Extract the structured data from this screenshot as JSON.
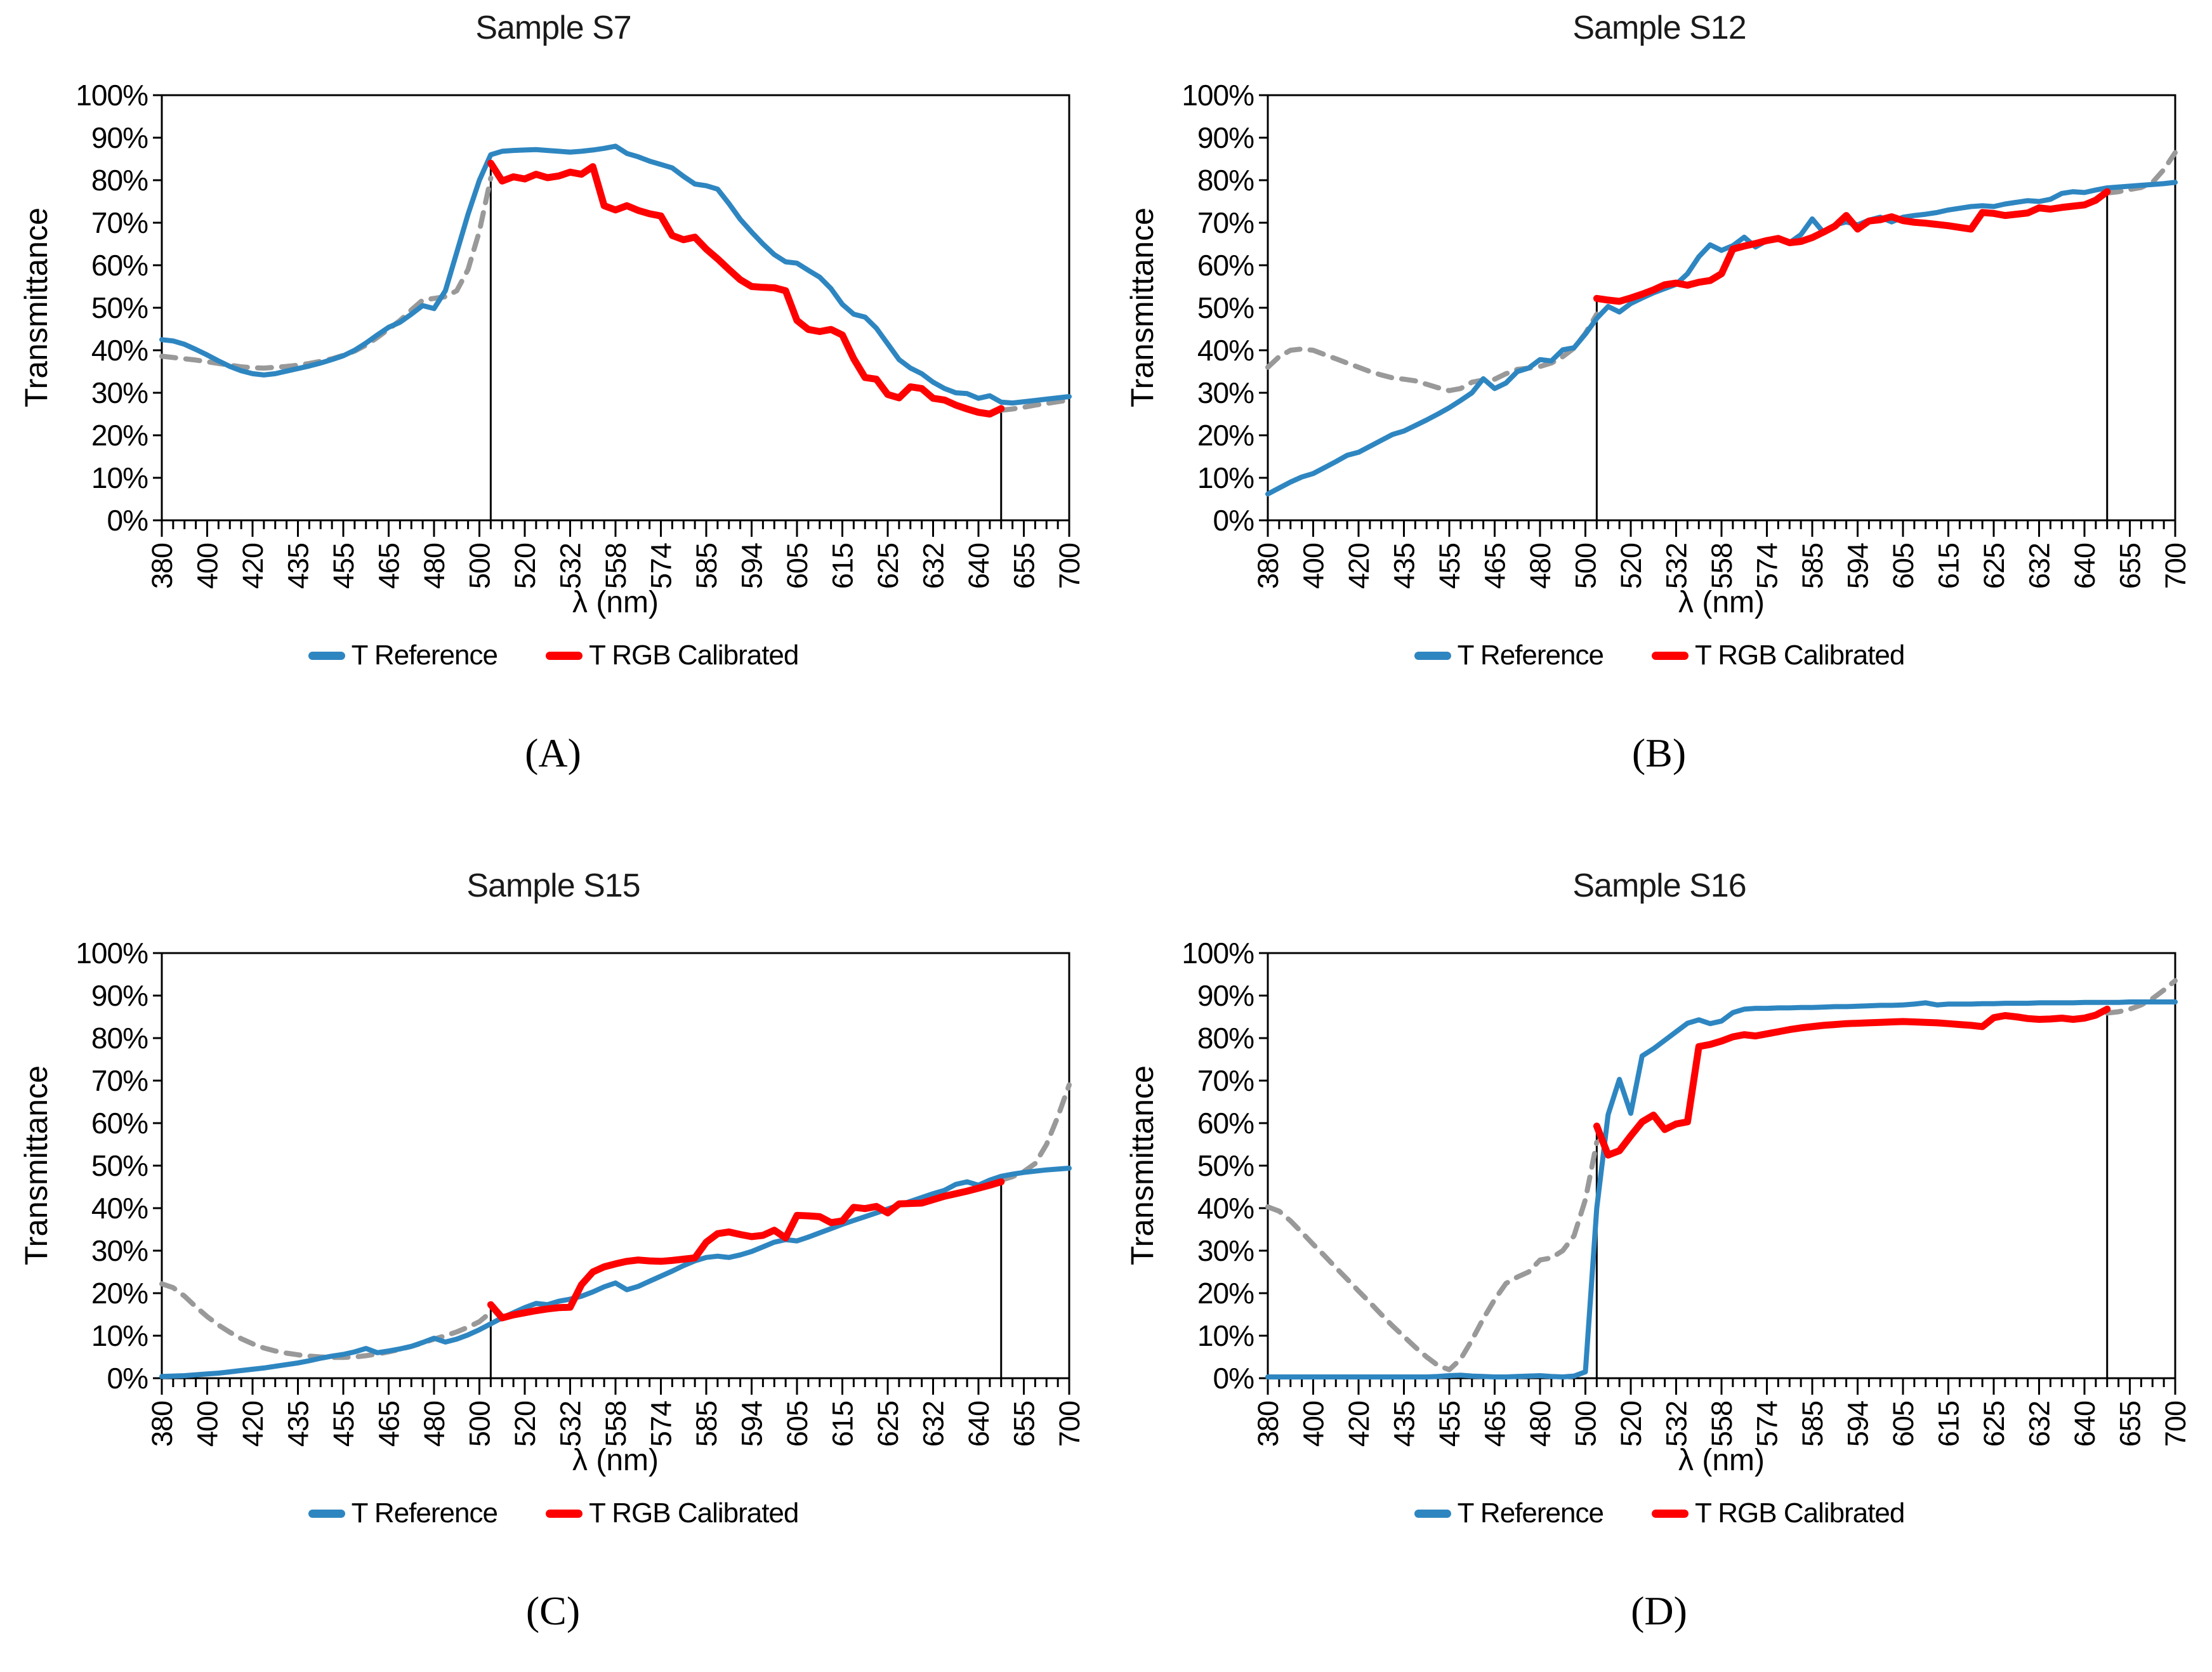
{
  "figure": {
    "background": "#ffffff",
    "y_axis_label": "Transmittance",
    "x_axis_label": "λ (nm)",
    "y_tick_labels": [
      "0%",
      "10%",
      "20%",
      "30%",
      "40%",
      "50%",
      "60%",
      "70%",
      "80%",
      "90%",
      "100%"
    ],
    "x_tick_labels": [
      "380",
      "400",
      "420",
      "435",
      "455",
      "465",
      "480",
      "500",
      "520",
      "532",
      "558",
      "574",
      "585",
      "594",
      "605",
      "615",
      "625",
      "632",
      "640",
      "655",
      "700"
    ]
  },
  "legend": {
    "items": [
      {
        "label": "T Reference",
        "color": "#2E86C1"
      },
      {
        "label": "T RGB Calibrated",
        "color": "#FF0000"
      }
    ]
  },
  "colors": {
    "reference_blue": "#2E86C1",
    "calibrated_red": "#FF0000",
    "uncalibrated_gray": "#999999",
    "axis_black": "#000000"
  },
  "chart_data": [
    {
      "type": "line",
      "panel": "A",
      "caption": "(A)",
      "title": "Sample S7",
      "xlabel": "λ (nm)",
      "ylabel": "Transmittance",
      "ylim": [
        0,
        100
      ],
      "grid": false,
      "legend_position": "bottom",
      "x_tick_labels": [
        "380",
        "400",
        "420",
        "435",
        "455",
        "465",
        "480",
        "500",
        "520",
        "532",
        "558",
        "574",
        "585",
        "594",
        "605",
        "615",
        "625",
        "632",
        "640",
        "655",
        "700"
      ],
      "calibration_lines": {
        "start_frac": 0.3625,
        "end_frac": 0.925
      },
      "series": [
        {
          "name": "T uncalibrated (left)",
          "role": "uncalibrated_left",
          "color": "#999999",
          "dashed": true,
          "width": 8,
          "start_frac": 0.0,
          "end_frac": 0.3625,
          "values": [
            38.6,
            38.3,
            38.0,
            37.7,
            37.3,
            36.9,
            36.5,
            36.1,
            35.9,
            35.8,
            36.0,
            36.2,
            36.5,
            36.9,
            37.4,
            38.0,
            38.8,
            39.8,
            41.2,
            43.0,
            45.0,
            47.0,
            49.5,
            51.8,
            52.2,
            52.6,
            54.0,
            59.0,
            68.0,
            80.5
          ]
        },
        {
          "name": "T uncalibrated (right)",
          "role": "uncalibrated_right",
          "color": "#999999",
          "dashed": true,
          "width": 8,
          "start_frac": 0.925,
          "end_frac": 1.0,
          "values": [
            25.9,
            26.2,
            26.6,
            27.1,
            27.5,
            27.9,
            28.3
          ]
        },
        {
          "name": "T Reference",
          "role": "reference",
          "color": "#2E86C1",
          "dashed": false,
          "width": 8,
          "start_frac": 0.0,
          "end_frac": 1.0,
          "values": [
            42.5,
            42.2,
            41.4,
            40.2,
            38.9,
            37.5,
            36.2,
            35.2,
            34.5,
            34.2,
            34.5,
            35.1,
            35.7,
            36.3,
            37.0,
            37.8,
            38.7,
            40.0,
            41.7,
            43.6,
            45.4,
            46.6,
            48.5,
            50.5,
            49.8,
            54.0,
            63.0,
            72.0,
            80.0,
            86.0,
            86.8,
            87.0,
            87.1,
            87.2,
            87.0,
            86.8,
            86.6,
            86.8,
            87.1,
            87.5,
            88.0,
            86.3,
            85.5,
            84.5,
            83.7,
            82.9,
            80.9,
            79.1,
            78.7,
            77.9,
            74.5,
            70.8,
            67.8,
            65.0,
            62.5,
            60.8,
            60.5,
            58.8,
            57.2,
            54.5,
            50.8,
            48.5,
            47.8,
            45.2,
            41.5,
            37.8,
            35.8,
            34.5,
            32.5,
            31.0,
            30.0,
            29.8,
            28.7,
            29.3,
            27.8,
            27.6,
            27.9,
            28.2,
            28.5,
            28.8,
            29.1
          ]
        },
        {
          "name": "T RGB Calibrated",
          "role": "calibrated",
          "color": "#FF0000",
          "dashed": false,
          "width": 11,
          "start_frac": 0.3625,
          "end_frac": 0.925,
          "values": [
            84.0,
            79.8,
            80.8,
            80.3,
            81.4,
            80.6,
            81.0,
            81.9,
            81.4,
            83.2,
            74.0,
            73.0,
            74.0,
            72.9,
            72.1,
            71.6,
            67.0,
            66.0,
            66.6,
            63.8,
            61.5,
            59.0,
            56.6,
            55.0,
            54.8,
            54.7,
            54.0,
            47.0,
            44.9,
            44.4,
            44.9,
            43.6,
            38.0,
            33.6,
            33.2,
            29.6,
            28.8,
            31.4,
            31.0,
            28.7,
            28.3,
            27.1,
            26.2,
            25.4,
            25.0,
            26.3
          ]
        }
      ]
    },
    {
      "type": "line",
      "panel": "B",
      "caption": "(B)",
      "title": "Sample S12",
      "xlabel": "λ (nm)",
      "ylabel": "Transmittance",
      "ylim": [
        0,
        100
      ],
      "grid": false,
      "legend_position": "bottom",
      "x_tick_labels": [
        "380",
        "400",
        "420",
        "435",
        "455",
        "465",
        "480",
        "500",
        "520",
        "532",
        "558",
        "574",
        "585",
        "594",
        "605",
        "615",
        "625",
        "632",
        "640",
        "655",
        "700"
      ],
      "calibration_lines": {
        "start_frac": 0.3625,
        "end_frac": 0.925
      },
      "series": [
        {
          "name": "T uncalibrated (left)",
          "role": "uncalibrated_left",
          "color": "#999999",
          "dashed": true,
          "width": 8,
          "start_frac": 0.0,
          "end_frac": 0.3625,
          "values": [
            36.0,
            38.5,
            40.0,
            40.3,
            40.0,
            39.0,
            38.0,
            37.0,
            36.0,
            35.0,
            34.2,
            33.5,
            33.2,
            32.8,
            32.0,
            31.2,
            30.5,
            31.0,
            32.5,
            33.0,
            33.2,
            34.5,
            35.5,
            35.8,
            36.2,
            37.0,
            38.5,
            40.5,
            44.0,
            48.5
          ]
        },
        {
          "name": "T uncalibrated (right)",
          "role": "uncalibrated_right",
          "color": "#999999",
          "dashed": true,
          "width": 8,
          "start_frac": 0.925,
          "end_frac": 1.0,
          "values": [
            77.0,
            77.3,
            77.8,
            78.3,
            79.5,
            82.5,
            86.5
          ]
        },
        {
          "name": "T Reference",
          "role": "reference",
          "color": "#2E86C1",
          "dashed": false,
          "width": 8,
          "start_frac": 0.0,
          "end_frac": 1.0,
          "values": [
            6.2,
            7.6,
            9.0,
            10.2,
            11.0,
            12.4,
            13.8,
            15.3,
            16.0,
            17.4,
            18.8,
            20.2,
            21.0,
            22.3,
            23.6,
            25.0,
            26.5,
            28.2,
            30.0,
            33.3,
            31.0,
            32.3,
            35.0,
            35.8,
            37.8,
            37.5,
            40.1,
            40.6,
            43.8,
            47.5,
            50.3,
            49.0,
            51.0,
            52.3,
            53.5,
            54.5,
            55.5,
            58.0,
            62.0,
            64.8,
            63.5,
            64.6,
            66.6,
            64.3,
            65.8,
            66.5,
            65.3,
            67.2,
            70.9,
            67.7,
            69.5,
            70.2,
            69.5,
            70.6,
            71.3,
            70.2,
            71.3,
            71.7,
            72.0,
            72.4,
            73.0,
            73.4,
            73.8,
            74.0,
            73.8,
            74.4,
            74.8,
            75.2,
            75.0,
            75.5,
            76.9,
            77.3,
            77.1,
            77.7,
            78.2,
            78.4,
            78.6,
            78.8,
            79.0,
            79.2,
            79.5
          ]
        },
        {
          "name": "T RGB Calibrated",
          "role": "calibrated",
          "color": "#FF0000",
          "dashed": false,
          "width": 11,
          "start_frac": 0.3625,
          "end_frac": 0.925,
          "values": [
            52.2,
            51.8,
            51.5,
            52.3,
            53.2,
            54.2,
            55.4,
            55.8,
            55.3,
            56.0,
            56.4,
            58.0,
            63.8,
            64.5,
            65.1,
            65.8,
            66.3,
            65.3,
            65.6,
            66.5,
            67.8,
            69.2,
            71.7,
            68.5,
            70.4,
            70.7,
            71.4,
            70.5,
            70.1,
            69.9,
            69.6,
            69.3,
            68.9,
            68.5,
            72.4,
            72.2,
            71.7,
            72.0,
            72.3,
            73.5,
            73.2,
            73.6,
            73.9,
            74.2,
            75.3,
            77.3
          ]
        }
      ]
    },
    {
      "type": "line",
      "panel": "C",
      "caption": "(C)",
      "title": "Sample S15",
      "xlabel": "λ (nm)",
      "ylabel": "Transmittance",
      "ylim": [
        0,
        100
      ],
      "grid": false,
      "legend_position": "bottom",
      "x_tick_labels": [
        "380",
        "400",
        "420",
        "435",
        "455",
        "465",
        "480",
        "500",
        "520",
        "532",
        "558",
        "574",
        "585",
        "594",
        "605",
        "615",
        "625",
        "632",
        "640",
        "655",
        "700"
      ],
      "calibration_lines": {
        "start_frac": 0.3625,
        "end_frac": 0.925
      },
      "series": [
        {
          "name": "T uncalibrated (left)",
          "role": "uncalibrated_left",
          "color": "#999999",
          "dashed": true,
          "width": 8,
          "start_frac": 0.0,
          "end_frac": 0.3625,
          "values": [
            22.2,
            21.3,
            19.3,
            16.8,
            14.5,
            12.5,
            10.8,
            9.3,
            8.1,
            7.1,
            6.4,
            5.9,
            5.5,
            5.2,
            5.0,
            4.9,
            4.9,
            5.0,
            5.3,
            5.7,
            6.2,
            6.8,
            7.5,
            8.3,
            9.2,
            10.0,
            10.9,
            12.0,
            13.3,
            15.5
          ]
        },
        {
          "name": "T uncalibrated (right)",
          "role": "uncalibrated_right",
          "color": "#999999",
          "dashed": true,
          "width": 8,
          "start_frac": 0.925,
          "end_frac": 1.0,
          "values": [
            46.6,
            47.4,
            48.6,
            50.5,
            55.0,
            61.5,
            69.0
          ]
        },
        {
          "name": "T Reference",
          "role": "reference",
          "color": "#2E86C1",
          "dashed": false,
          "width": 8,
          "start_frac": 0.0,
          "end_frac": 1.0,
          "values": [
            0.4,
            0.5,
            0.6,
            0.8,
            1.0,
            1.2,
            1.5,
            1.8,
            2.1,
            2.4,
            2.8,
            3.2,
            3.6,
            4.1,
            4.7,
            5.2,
            5.6,
            6.2,
            7.0,
            6.0,
            6.4,
            6.9,
            7.5,
            8.4,
            9.4,
            8.5,
            9.2,
            10.2,
            11.4,
            12.8,
            14.2,
            15.4,
            16.6,
            17.6,
            17.3,
            18.1,
            18.6,
            19.3,
            20.3,
            21.5,
            22.4,
            20.8,
            21.6,
            22.8,
            24.0,
            25.2,
            26.5,
            27.6,
            28.4,
            28.7,
            28.4,
            29.0,
            29.8,
            30.9,
            32.0,
            32.6,
            32.3,
            33.2,
            34.2,
            35.2,
            36.2,
            37.1,
            38.0,
            38.9,
            39.8,
            40.7,
            41.6,
            42.5,
            43.4,
            44.2,
            45.6,
            46.2,
            45.4,
            46.6,
            47.5,
            48.0,
            48.4,
            48.7,
            49.0,
            49.2,
            49.4
          ]
        },
        {
          "name": "T RGB Calibrated",
          "role": "calibrated",
          "color": "#FF0000",
          "dashed": false,
          "width": 11,
          "start_frac": 0.3625,
          "end_frac": 0.925,
          "values": [
            17.3,
            14.2,
            14.9,
            15.4,
            15.9,
            16.3,
            16.6,
            16.7,
            22.0,
            25.0,
            26.2,
            26.9,
            27.5,
            27.8,
            27.6,
            27.5,
            27.7,
            28.0,
            28.3,
            32.0,
            34.0,
            34.4,
            33.8,
            33.3,
            33.6,
            34.8,
            33.0,
            38.3,
            38.2,
            38.0,
            36.6,
            37.0,
            40.2,
            39.9,
            40.4,
            38.9,
            41.0,
            41.1,
            41.2,
            42.0,
            42.8,
            43.4,
            44.0,
            44.7,
            45.4,
            46.2
          ]
        }
      ]
    },
    {
      "type": "line",
      "panel": "D",
      "caption": "(D)",
      "title": "Sample S16",
      "xlabel": "λ (nm)",
      "ylabel": "Transmittance",
      "ylim": [
        0,
        100
      ],
      "grid": false,
      "legend_position": "bottom",
      "x_tick_labels": [
        "380",
        "400",
        "420",
        "435",
        "455",
        "465",
        "480",
        "500",
        "520",
        "532",
        "558",
        "574",
        "585",
        "594",
        "605",
        "615",
        "625",
        "632",
        "640",
        "655",
        "700"
      ],
      "calibration_lines": {
        "start_frac": 0.3625,
        "end_frac": 0.925
      },
      "series": [
        {
          "name": "T uncalibrated (left)",
          "role": "uncalibrated_left",
          "color": "#999999",
          "dashed": true,
          "width": 8,
          "start_frac": 0.0,
          "end_frac": 0.3625,
          "values": [
            40.3,
            39.3,
            37.0,
            34.3,
            31.5,
            28.8,
            26.0,
            23.3,
            20.5,
            17.8,
            15.0,
            12.3,
            9.8,
            7.3,
            5.0,
            3.0,
            2.0,
            4.5,
            9.0,
            14.0,
            18.5,
            22.3,
            23.8,
            25.0,
            27.8,
            28.3,
            30.0,
            33.5,
            42.0,
            55.5
          ]
        },
        {
          "name": "T uncalibrated (right)",
          "role": "uncalibrated_right",
          "color": "#999999",
          "dashed": true,
          "width": 8,
          "start_frac": 0.925,
          "end_frac": 1.0,
          "values": [
            85.9,
            86.2,
            86.8,
            87.8,
            89.3,
            91.3,
            93.5
          ]
        },
        {
          "name": "T Reference",
          "role": "reference",
          "color": "#2E86C1",
          "dashed": false,
          "width": 8,
          "start_frac": 0.0,
          "end_frac": 1.0,
          "values": [
            0.3,
            0.3,
            0.3,
            0.3,
            0.3,
            0.3,
            0.3,
            0.3,
            0.3,
            0.3,
            0.3,
            0.3,
            0.3,
            0.3,
            0.3,
            0.4,
            0.6,
            0.7,
            0.5,
            0.4,
            0.3,
            0.3,
            0.4,
            0.5,
            0.6,
            0.4,
            0.3,
            0.5,
            1.5,
            40.0,
            62.0,
            70.3,
            62.3,
            75.8,
            77.5,
            79.5,
            81.5,
            83.5,
            84.3,
            83.4,
            84.0,
            86.0,
            86.8,
            87.0,
            87.0,
            87.1,
            87.1,
            87.2,
            87.2,
            87.3,
            87.4,
            87.4,
            87.5,
            87.6,
            87.7,
            87.7,
            87.8,
            88.0,
            88.3,
            87.8,
            88.0,
            88.0,
            88.0,
            88.1,
            88.1,
            88.2,
            88.2,
            88.2,
            88.3,
            88.3,
            88.3,
            88.3,
            88.4,
            88.4,
            88.4,
            88.4,
            88.5,
            88.5,
            88.5,
            88.5,
            88.5
          ]
        },
        {
          "name": "T RGB Calibrated",
          "role": "calibrated",
          "color": "#FF0000",
          "dashed": false,
          "width": 11,
          "start_frac": 0.3625,
          "end_frac": 0.925,
          "values": [
            59.3,
            52.5,
            53.5,
            57.0,
            60.3,
            61.9,
            58.5,
            59.8,
            60.3,
            78.0,
            78.5,
            79.3,
            80.3,
            80.8,
            80.5,
            81.0,
            81.5,
            82.0,
            82.4,
            82.7,
            83.0,
            83.2,
            83.4,
            83.5,
            83.6,
            83.7,
            83.8,
            83.9,
            83.8,
            83.7,
            83.6,
            83.4,
            83.2,
            83.0,
            82.7,
            84.8,
            85.3,
            85.0,
            84.6,
            84.4,
            84.5,
            84.7,
            84.4,
            84.7,
            85.4,
            86.8
          ]
        }
      ]
    }
  ]
}
